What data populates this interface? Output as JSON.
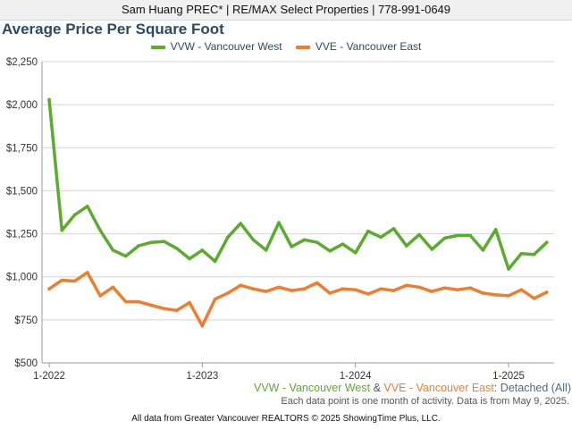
{
  "header": {
    "agent_line": "Sam Huang PREC* | RE/MAX Select Properties | 778-991-0649"
  },
  "colors": {
    "west": "#5bab2e",
    "east": "#ee7d2f",
    "title": "#2a4a66",
    "grid": "#d4d4d4"
  },
  "subtitle": {
    "west": "VVW - Vancouver West",
    "amp": " & ",
    "east": "VVE - Vancouver East",
    "tail": ": Detached (All)"
  },
  "note": "Each data point is one month of activity. Data is from May 9, 2025.",
  "footer": "All data from Greater Vancouver REALTORS © 2025 ShowingTime Plus, LLC.",
  "chart_data": {
    "type": "line",
    "title": "Average Price Per Square Foot",
    "legend_position": "top-center",
    "grid": "horizontal",
    "ylim": [
      500,
      2250
    ],
    "yticks": [
      500,
      750,
      1000,
      1250,
      1500,
      1750,
      2000,
      2250
    ],
    "ytick_labels": [
      "$500",
      "$750",
      "$1,000",
      "$1,250",
      "$1,500",
      "$1,750",
      "$2,000",
      "$2,250"
    ],
    "xtick_labels": [
      "1-2022",
      "1-2023",
      "1-2024",
      "1-2025"
    ],
    "xtick_index": [
      0,
      12,
      24,
      36
    ],
    "x": [
      "1-2022",
      "2-2022",
      "3-2022",
      "4-2022",
      "5-2022",
      "6-2022",
      "7-2022",
      "8-2022",
      "9-2022",
      "10-2022",
      "11-2022",
      "12-2022",
      "1-2023",
      "2-2023",
      "3-2023",
      "4-2023",
      "5-2023",
      "6-2023",
      "7-2023",
      "8-2023",
      "9-2023",
      "10-2023",
      "11-2023",
      "12-2023",
      "1-2024",
      "2-2024",
      "3-2024",
      "4-2024",
      "5-2024",
      "6-2024",
      "7-2024",
      "8-2024",
      "9-2024",
      "10-2024",
      "11-2024",
      "12-2024",
      "1-2025",
      "2-2025",
      "3-2025",
      "4-2025"
    ],
    "series": [
      {
        "name": "VVW - Vancouver West",
        "color": "#5bab2e",
        "values": [
          2030,
          1270,
          1360,
          1410,
          1270,
          1155,
          1120,
          1180,
          1200,
          1205,
          1165,
          1105,
          1155,
          1090,
          1230,
          1310,
          1215,
          1155,
          1315,
          1175,
          1215,
          1200,
          1150,
          1190,
          1140,
          1265,
          1230,
          1280,
          1180,
          1245,
          1160,
          1225,
          1240,
          1240,
          1155,
          1275,
          1045,
          1135,
          1130,
          1200
        ]
      },
      {
        "name": "VVE - Vancouver East",
        "color": "#ee7d2f",
        "values": [
          930,
          980,
          975,
          1025,
          890,
          940,
          855,
          855,
          835,
          815,
          805,
          850,
          715,
          870,
          905,
          950,
          930,
          915,
          940,
          920,
          930,
          965,
          905,
          930,
          925,
          900,
          930,
          920,
          950,
          940,
          915,
          935,
          925,
          935,
          905,
          895,
          890,
          925,
          875,
          910
        ]
      }
    ]
  }
}
